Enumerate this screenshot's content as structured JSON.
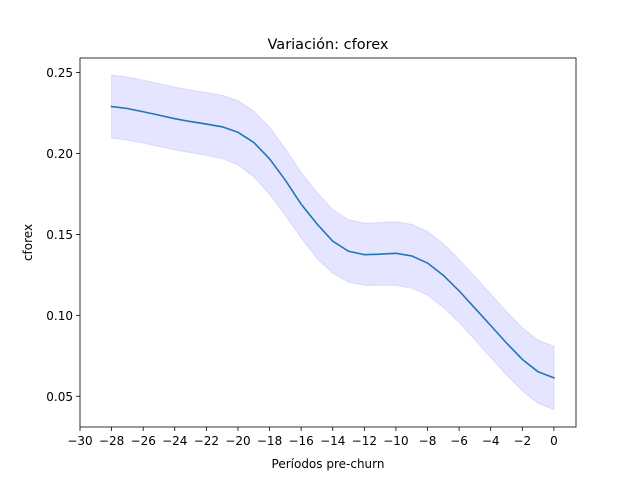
{
  "chart_data": {
    "type": "line",
    "title": "Variación: cforex",
    "xlabel": "Períodos pre-churn",
    "ylabel": "cforex",
    "xlim": [
      -30,
      1.4
    ],
    "ylim": [
      0.031,
      0.259
    ],
    "xticks": [
      -30,
      -28,
      -26,
      -24,
      -22,
      -20,
      -18,
      -16,
      -14,
      -12,
      -10,
      -8,
      -6,
      -4,
      -2,
      0
    ],
    "xtick_labels": [
      "−30",
      "−28",
      "−26",
      "−24",
      "−22",
      "−20",
      "−18",
      "−16",
      "−14",
      "−12",
      "−10",
      "−8",
      "−6",
      "−4",
      "−2",
      "0"
    ],
    "yticks": [
      0.05,
      0.1,
      0.15,
      0.2,
      0.25
    ],
    "ytick_labels": [
      "0.05",
      "0.10",
      "0.15",
      "0.20",
      "0.25"
    ],
    "grid": false,
    "colors": {
      "line": "#1f77b4",
      "band": "#0000ff"
    },
    "series": [
      {
        "x": [
          -28,
          -27,
          -26,
          -25,
          -24,
          -23,
          -22,
          -21,
          -20,
          -19,
          -18,
          -17,
          -16,
          -15,
          -14,
          -13,
          -12,
          -11,
          -10,
          -9,
          -8,
          -7,
          -6,
          -5,
          -4,
          -3,
          -2,
          -1,
          0
        ],
        "values": [
          0.229,
          0.2278,
          0.2258,
          0.2237,
          0.2215,
          0.2197,
          0.2182,
          0.2165,
          0.2131,
          0.2068,
          0.1967,
          0.1835,
          0.1687,
          0.1565,
          0.1458,
          0.1396,
          0.1375,
          0.1378,
          0.1383,
          0.1367,
          0.1323,
          0.1247,
          0.1151,
          0.1044,
          0.0937,
          0.0829,
          0.0728,
          0.0651,
          0.0614
        ],
        "lower": [
          0.2095,
          0.2083,
          0.2065,
          0.2043,
          0.2022,
          0.2005,
          0.1988,
          0.1969,
          0.193,
          0.1856,
          0.1749,
          0.1618,
          0.1478,
          0.1352,
          0.126,
          0.1204,
          0.1185,
          0.1186,
          0.1186,
          0.1167,
          0.1125,
          0.1049,
          0.0956,
          0.0848,
          0.074,
          0.0632,
          0.0533,
          0.0456,
          0.0418
        ],
        "upper": [
          0.2485,
          0.2473,
          0.2453,
          0.2432,
          0.241,
          0.2392,
          0.2377,
          0.236,
          0.2326,
          0.2263,
          0.2162,
          0.203,
          0.1882,
          0.176,
          0.1653,
          0.1591,
          0.157,
          0.1573,
          0.1578,
          0.1562,
          0.1518,
          0.1442,
          0.1346,
          0.1239,
          0.1132,
          0.1024,
          0.0923,
          0.0846,
          0.0809
        ]
      }
    ]
  }
}
